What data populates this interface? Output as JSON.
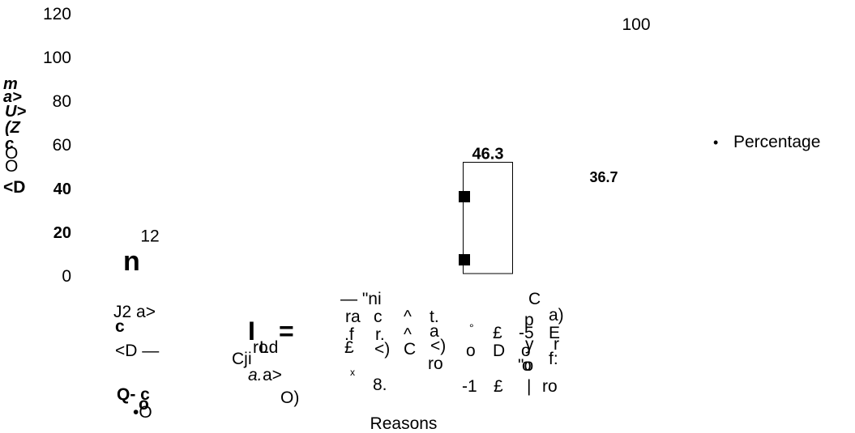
{
  "chart_data": {
    "type": "bar",
    "xlabel": "Reasons",
    "ylabel": "",
    "ylim": [
      0,
      120
    ],
    "y_ticks": [
      "120",
      "100",
      "80",
      "60",
      "40",
      "20",
      "0"
    ],
    "categories": [
      "",
      "",
      "",
      "",
      "",
      ""
    ],
    "values": [
      12,
      1,
      2,
      46.3,
      36.7,
      100
    ],
    "data_labels": [
      "12",
      "",
      "",
      "46.3",
      "36.7",
      "100"
    ],
    "bar_color": "#ffffff",
    "bar_outline": "#000000",
    "legend": {
      "position": "right",
      "entries": [
        "Percentage"
      ],
      "bullet": "•"
    }
  },
  "garbled_ylabel": [
    "m",
    "a>",
    "U>",
    "(Z",
    "c",
    "O",
    "O",
    "<D"
  ],
  "garbled_categories": [
    [
      "J2 a>",
      "c",
      "<D —",
      "Q- c",
      "o",
      "•O"
    ],
    [
      "I",
      "=",
      "Cj",
      "i",
      "ro",
      "Ld",
      "a.",
      "a>",
      "O)"
    ],
    [
      "— \"ni",
      "ra",
      "c",
      "^",
      "t.",
      ".f",
      "r.",
      "^",
      "a",
      "£",
      "<)",
      "C",
      "<)",
      "ro",
      "x",
      "8."
    ],
    [
      "°",
      "o",
      "D",
      "-1",
      "£",
      "C",
      "p",
      "a)",
      "£",
      "-5",
      "E",
      "o",
      "y",
      "r",
      "o",
      "\"o",
      "f:",
      "|",
      "ro"
    ]
  ]
}
